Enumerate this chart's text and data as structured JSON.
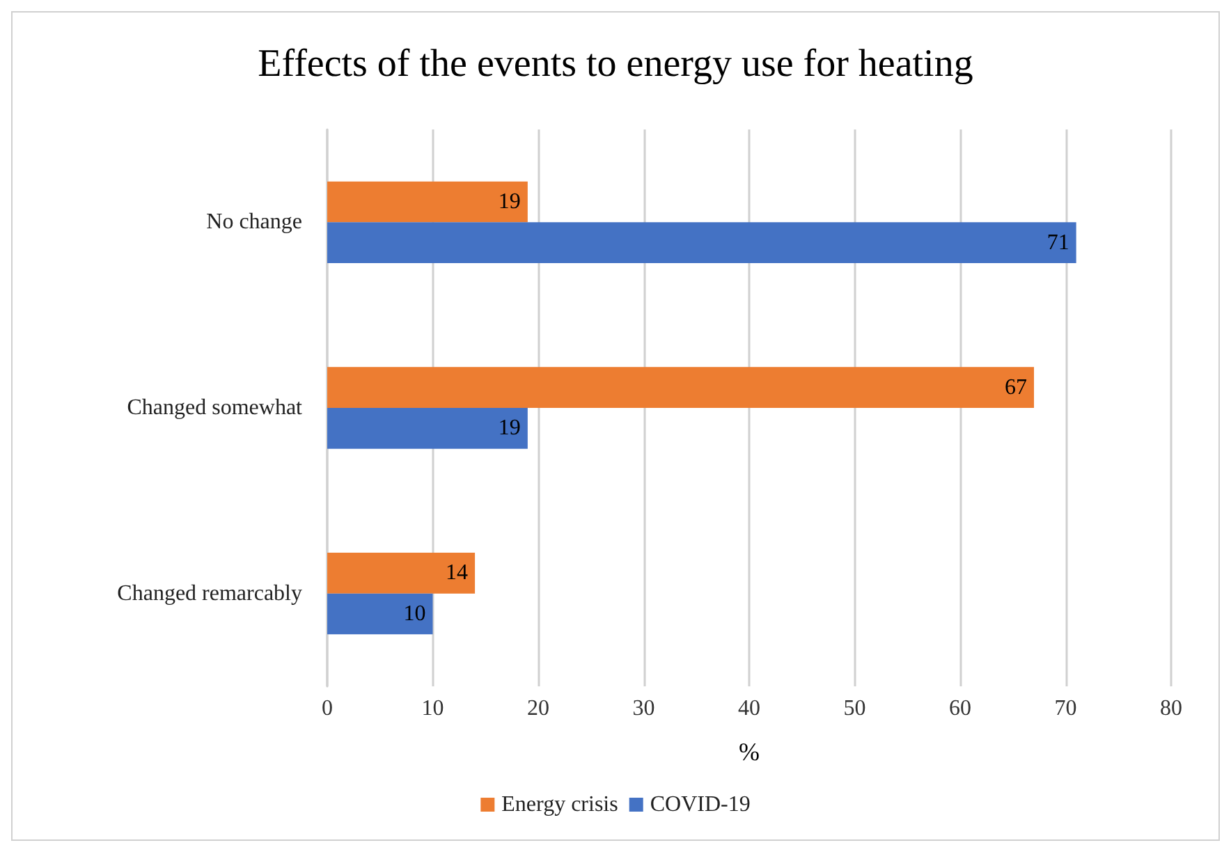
{
  "chart_data": {
    "type": "bar",
    "orientation": "horizontal",
    "title": "Effects of the events to energy use for heating",
    "xlabel": "%",
    "categories": [
      "No change",
      "Changed somewhat",
      "Changed remarcably"
    ],
    "series": [
      {
        "name": "Energy crisis",
        "color": "#ed7d31",
        "values": [
          19,
          67,
          14
        ]
      },
      {
        "name": "COVID-19",
        "color": "#4472c4",
        "values": [
          71,
          19,
          10
        ]
      }
    ],
    "xlim": [
      0,
      80
    ],
    "xticks": [
      0,
      10,
      20,
      30,
      40,
      50,
      60,
      70,
      80
    ],
    "grid": "x",
    "legend": "bottom",
    "data_labels": true
  }
}
